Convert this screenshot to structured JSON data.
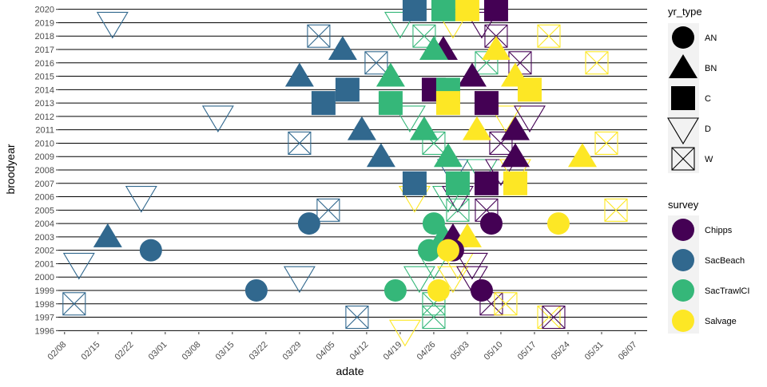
{
  "chart_data": {
    "type": "scatter",
    "title": "",
    "xlabel": "adate",
    "ylabel": "broodyear",
    "x_tick_labels": [
      "02/08",
      "02/15",
      "02/22",
      "03/01",
      "03/08",
      "03/15",
      "03/22",
      "03/29",
      "04/05",
      "04/12",
      "04/19",
      "04/26",
      "05/03",
      "05/10",
      "05/17",
      "05/24",
      "05/31",
      "06/07"
    ],
    "x_tick_day_of_year": [
      39,
      46,
      53,
      60,
      67,
      74,
      81,
      88,
      95,
      102,
      109,
      116,
      123,
      130,
      137,
      144,
      151,
      158
    ],
    "xlim_day_of_year": [
      37.7,
      160.5
    ],
    "y_tick_labels": [
      "1996",
      "1997",
      "1998",
      "1999",
      "2000",
      "2001",
      "2002",
      "2003",
      "2004",
      "2005",
      "2006",
      "2007",
      "2008",
      "2009",
      "2010",
      "2011",
      "2012",
      "2013",
      "2014",
      "2015",
      "2016",
      "2017",
      "2018",
      "2019",
      "2020"
    ],
    "ylim": [
      1995.9,
      2020.1
    ],
    "horizontal_gridlines": true,
    "legend_shape": {
      "title": "yr_type",
      "position": "right",
      "entries": [
        {
          "label": "AN",
          "shape": "filled-circle"
        },
        {
          "label": "BN",
          "shape": "filled-triangle"
        },
        {
          "label": "C",
          "shape": "filled-square"
        },
        {
          "label": "D",
          "shape": "open-down-triangle"
        },
        {
          "label": "W",
          "shape": "open-crossed-square"
        }
      ]
    },
    "legend_color": {
      "title": "survey",
      "position": "right",
      "entries": [
        {
          "label": "Chipps",
          "color": "#440154"
        },
        {
          "label": "SacBeach",
          "color": "#31688E"
        },
        {
          "label": "SacTrawlCI",
          "color": "#35B779"
        },
        {
          "label": "Salvage",
          "color": "#FDE725"
        }
      ]
    },
    "points": [
      {
        "broodyear": 2020,
        "adate": "04/22",
        "survey": "SacBeach",
        "yr_type": "C"
      },
      {
        "broodyear": 2020,
        "adate": "04/28",
        "survey": "SacTrawlCI",
        "yr_type": "C"
      },
      {
        "broodyear": 2020,
        "adate": "05/03",
        "survey": "Salvage",
        "yr_type": "C"
      },
      {
        "broodyear": 2020,
        "adate": "05/09",
        "survey": "Chipps",
        "yr_type": "C"
      },
      {
        "broodyear": 2019,
        "adate": "02/18",
        "survey": "SacBeach",
        "yr_type": "D"
      },
      {
        "broodyear": 2019,
        "adate": "04/19",
        "survey": "SacTrawlCI",
        "yr_type": "D"
      },
      {
        "broodyear": 2019,
        "adate": "04/30",
        "survey": "Salvage",
        "yr_type": "D"
      },
      {
        "broodyear": 2019,
        "adate": "05/06",
        "survey": "Chipps",
        "yr_type": "D"
      },
      {
        "broodyear": 2018,
        "adate": "04/02",
        "survey": "SacBeach",
        "yr_type": "W"
      },
      {
        "broodyear": 2018,
        "adate": "04/24",
        "survey": "SacTrawlCI",
        "yr_type": "W"
      },
      {
        "broodyear": 2018,
        "adate": "05/09",
        "survey": "Chipps",
        "yr_type": "W"
      },
      {
        "broodyear": 2018,
        "adate": "05/20",
        "survey": "Salvage",
        "yr_type": "W"
      },
      {
        "broodyear": 2017,
        "adate": "04/07",
        "survey": "SacBeach",
        "yr_type": "BN"
      },
      {
        "broodyear": 2017,
        "adate": "04/28",
        "survey": "Chipps",
        "yr_type": "BN"
      },
      {
        "broodyear": 2017,
        "adate": "04/26",
        "survey": "SacTrawlCI",
        "yr_type": "BN"
      },
      {
        "broodyear": 2017,
        "adate": "05/09",
        "survey": "Salvage",
        "yr_type": "BN"
      },
      {
        "broodyear": 2016,
        "adate": "04/14",
        "survey": "SacBeach",
        "yr_type": "W"
      },
      {
        "broodyear": 2016,
        "adate": "05/07",
        "survey": "SacTrawlCI",
        "yr_type": "W"
      },
      {
        "broodyear": 2016,
        "adate": "05/14",
        "survey": "Chipps",
        "yr_type": "W"
      },
      {
        "broodyear": 2016,
        "adate": "05/30",
        "survey": "Salvage",
        "yr_type": "W"
      },
      {
        "broodyear": 2015,
        "adate": "03/29",
        "survey": "SacBeach",
        "yr_type": "BN"
      },
      {
        "broodyear": 2015,
        "adate": "04/17",
        "survey": "SacTrawlCI",
        "yr_type": "BN"
      },
      {
        "broodyear": 2015,
        "adate": "05/04",
        "survey": "Chipps",
        "yr_type": "BN"
      },
      {
        "broodyear": 2015,
        "adate": "05/13",
        "survey": "Salvage",
        "yr_type": "BN"
      },
      {
        "broodyear": 2014,
        "adate": "04/08",
        "survey": "SacBeach",
        "yr_type": "C"
      },
      {
        "broodyear": 2014,
        "adate": "04/26",
        "survey": "Chipps",
        "yr_type": "C"
      },
      {
        "broodyear": 2014,
        "adate": "04/29",
        "survey": "SacTrawlCI",
        "yr_type": "C"
      },
      {
        "broodyear": 2014,
        "adate": "05/16",
        "survey": "Salvage",
        "yr_type": "C"
      },
      {
        "broodyear": 2013,
        "adate": "04/03",
        "survey": "SacBeach",
        "yr_type": "C"
      },
      {
        "broodyear": 2013,
        "adate": "04/17",
        "survey": "SacTrawlCI",
        "yr_type": "C"
      },
      {
        "broodyear": 2013,
        "adate": "04/29",
        "survey": "Salvage",
        "yr_type": "C"
      },
      {
        "broodyear": 2013,
        "adate": "05/07",
        "survey": "Chipps",
        "yr_type": "C"
      },
      {
        "broodyear": 2012,
        "adate": "03/12",
        "survey": "SacBeach",
        "yr_type": "D"
      },
      {
        "broodyear": 2012,
        "adate": "04/21",
        "survey": "SacTrawlCI",
        "yr_type": "D"
      },
      {
        "broodyear": 2012,
        "adate": "05/11",
        "survey": "Salvage",
        "yr_type": "D"
      },
      {
        "broodyear": 2012,
        "adate": "05/16",
        "survey": "Chipps",
        "yr_type": "D"
      },
      {
        "broodyear": 2011,
        "adate": "04/11",
        "survey": "SacBeach",
        "yr_type": "BN"
      },
      {
        "broodyear": 2011,
        "adate": "04/24",
        "survey": "SacTrawlCI",
        "yr_type": "BN"
      },
      {
        "broodyear": 2011,
        "adate": "05/05",
        "survey": "Salvage",
        "yr_type": "BN"
      },
      {
        "broodyear": 2011,
        "adate": "05/13",
        "survey": "Chipps",
        "yr_type": "BN"
      },
      {
        "broodyear": 2010,
        "adate": "03/29",
        "survey": "SacBeach",
        "yr_type": "W"
      },
      {
        "broodyear": 2010,
        "adate": "04/26",
        "survey": "SacTrawlCI",
        "yr_type": "W"
      },
      {
        "broodyear": 2010,
        "adate": "05/10",
        "survey": "Chipps",
        "yr_type": "W"
      },
      {
        "broodyear": 2010,
        "adate": "06/01",
        "survey": "Salvage",
        "yr_type": "W"
      },
      {
        "broodyear": 2009,
        "adate": "04/15",
        "survey": "SacBeach",
        "yr_type": "BN"
      },
      {
        "broodyear": 2009,
        "adate": "04/29",
        "survey": "SacTrawlCI",
        "yr_type": "BN"
      },
      {
        "broodyear": 2009,
        "adate": "05/13",
        "survey": "Chipps",
        "yr_type": "BN"
      },
      {
        "broodyear": 2009,
        "adate": "05/27",
        "survey": "Salvage",
        "yr_type": "BN"
      },
      {
        "broodyear": 2008,
        "adate": "04/30",
        "survey": "SacBeach",
        "yr_type": "D"
      },
      {
        "broodyear": 2008,
        "adate": "05/06",
        "survey": "SacTrawlCI",
        "yr_type": "D"
      },
      {
        "broodyear": 2008,
        "adate": "05/10",
        "survey": "Chipps",
        "yr_type": "D"
      },
      {
        "broodyear": 2008,
        "adate": "05/13",
        "survey": "Salvage",
        "yr_type": "D"
      },
      {
        "broodyear": 2007,
        "adate": "04/22",
        "survey": "SacBeach",
        "yr_type": "C"
      },
      {
        "broodyear": 2007,
        "adate": "05/01",
        "survey": "SacTrawlCI",
        "yr_type": "C"
      },
      {
        "broodyear": 2007,
        "adate": "05/07",
        "survey": "Chipps",
        "yr_type": "C"
      },
      {
        "broodyear": 2007,
        "adate": "05/13",
        "survey": "Salvage",
        "yr_type": "C"
      },
      {
        "broodyear": 2006,
        "adate": "02/24",
        "survey": "SacBeach",
        "yr_type": "D"
      },
      {
        "broodyear": 2006,
        "adate": "04/22",
        "survey": "Salvage",
        "yr_type": "D"
      },
      {
        "broodyear": 2006,
        "adate": "04/29",
        "survey": "SacTrawlCI",
        "yr_type": "D"
      },
      {
        "broodyear": 2006,
        "adate": "05/01",
        "survey": "Chipps",
        "yr_type": "D"
      },
      {
        "broodyear": 2005,
        "adate": "04/04",
        "survey": "SacBeach",
        "yr_type": "W"
      },
      {
        "broodyear": 2005,
        "adate": "05/01",
        "survey": "SacTrawlCI",
        "yr_type": "W"
      },
      {
        "broodyear": 2005,
        "adate": "05/07",
        "survey": "Chipps",
        "yr_type": "W"
      },
      {
        "broodyear": 2005,
        "adate": "06/03",
        "survey": "Salvage",
        "yr_type": "W"
      },
      {
        "broodyear": 2004,
        "adate": "03/31",
        "survey": "SacBeach",
        "yr_type": "AN"
      },
      {
        "broodyear": 2004,
        "adate": "04/26",
        "survey": "SacTrawlCI",
        "yr_type": "AN"
      },
      {
        "broodyear": 2004,
        "adate": "05/08",
        "survey": "Chipps",
        "yr_type": "AN"
      },
      {
        "broodyear": 2004,
        "adate": "05/22",
        "survey": "Salvage",
        "yr_type": "AN"
      },
      {
        "broodyear": 2003,
        "adate": "02/17",
        "survey": "SacBeach",
        "yr_type": "BN"
      },
      {
        "broodyear": 2003,
        "adate": "04/28",
        "survey": "SacTrawlCI",
        "yr_type": "BN"
      },
      {
        "broodyear": 2003,
        "adate": "04/30",
        "survey": "Chipps",
        "yr_type": "BN"
      },
      {
        "broodyear": 2003,
        "adate": "05/03",
        "survey": "Salvage",
        "yr_type": "BN"
      },
      {
        "broodyear": 2002,
        "adate": "02/26",
        "survey": "SacBeach",
        "yr_type": "AN"
      },
      {
        "broodyear": 2002,
        "adate": "04/25",
        "survey": "SacTrawlCI",
        "yr_type": "AN"
      },
      {
        "broodyear": 2002,
        "adate": "04/30",
        "survey": "Chipps",
        "yr_type": "AN"
      },
      {
        "broodyear": 2002,
        "adate": "04/29",
        "survey": "Salvage",
        "yr_type": "AN"
      },
      {
        "broodyear": 2001,
        "adate": "02/11",
        "survey": "SacBeach",
        "yr_type": "D"
      },
      {
        "broodyear": 2001,
        "adate": "04/26",
        "survey": "SacTrawlCI",
        "yr_type": "D"
      },
      {
        "broodyear": 2001,
        "adate": "05/01",
        "survey": "Salvage",
        "yr_type": "D"
      },
      {
        "broodyear": 2001,
        "adate": "05/04",
        "survey": "Chipps",
        "yr_type": "D"
      },
      {
        "broodyear": 2000,
        "adate": "03/29",
        "survey": "SacBeach",
        "yr_type": "D"
      },
      {
        "broodyear": 2000,
        "adate": "04/23",
        "survey": "SacTrawlCI",
        "yr_type": "D"
      },
      {
        "broodyear": 2000,
        "adate": "04/30",
        "survey": "Salvage",
        "yr_type": "D"
      },
      {
        "broodyear": 2000,
        "adate": "05/04",
        "survey": "Chipps",
        "yr_type": "D"
      },
      {
        "broodyear": 1999,
        "adate": "03/20",
        "survey": "SacBeach",
        "yr_type": "AN"
      },
      {
        "broodyear": 1999,
        "adate": "04/18",
        "survey": "SacTrawlCI",
        "yr_type": "AN"
      },
      {
        "broodyear": 1999,
        "adate": "04/27",
        "survey": "Salvage",
        "yr_type": "AN"
      },
      {
        "broodyear": 1999,
        "adate": "05/06",
        "survey": "Chipps",
        "yr_type": "AN"
      },
      {
        "broodyear": 1998,
        "adate": "02/10",
        "survey": "SacBeach",
        "yr_type": "W"
      },
      {
        "broodyear": 1998,
        "adate": "04/26",
        "survey": "SacTrawlCI",
        "yr_type": "W"
      },
      {
        "broodyear": 1998,
        "adate": "05/08",
        "survey": "Chipps",
        "yr_type": "W"
      },
      {
        "broodyear": 1998,
        "adate": "05/11",
        "survey": "Salvage",
        "yr_type": "W"
      },
      {
        "broodyear": 1997,
        "adate": "04/10",
        "survey": "SacBeach",
        "yr_type": "W"
      },
      {
        "broodyear": 1997,
        "adate": "04/26",
        "survey": "SacTrawlCI",
        "yr_type": "W"
      },
      {
        "broodyear": 1997,
        "adate": "05/20",
        "survey": "Salvage",
        "yr_type": "W"
      },
      {
        "broodyear": 1997,
        "adate": "05/21",
        "survey": "Chipps",
        "yr_type": "W"
      },
      {
        "broodyear": 1996,
        "adate": "04/20",
        "survey": "Salvage",
        "yr_type": "D"
      }
    ]
  }
}
